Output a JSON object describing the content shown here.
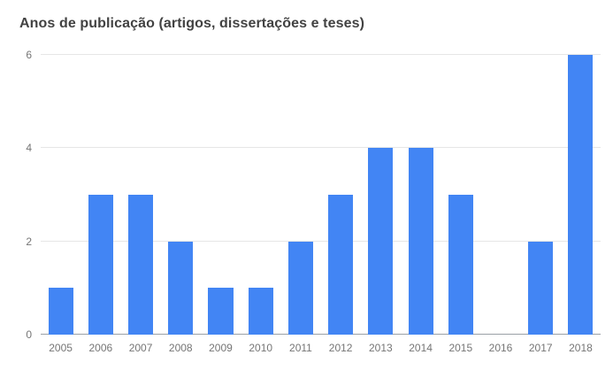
{
  "chart_data": {
    "type": "bar",
    "title": "Anos de publicação (artigos, dissertações e teses)",
    "categories": [
      "2005",
      "2006",
      "2007",
      "2008",
      "2009",
      "2010",
      "2011",
      "2012",
      "2013",
      "2014",
      "2015",
      "2016",
      "2017",
      "2018"
    ],
    "values": [
      1,
      3,
      3,
      2,
      1,
      1,
      2,
      3,
      4,
      4,
      3,
      0,
      2,
      6
    ],
    "xlabel": "",
    "ylabel": "",
    "ylim": [
      0,
      6
    ],
    "yticks": [
      0,
      2,
      4,
      6
    ],
    "grid": true,
    "legend": "none",
    "bar_color": "#4285f4",
    "grid_color": "#e6e6e6",
    "axis_line_color": "#9aa0a6",
    "tick_label_color": "#757575",
    "title_color": "#424242"
  }
}
